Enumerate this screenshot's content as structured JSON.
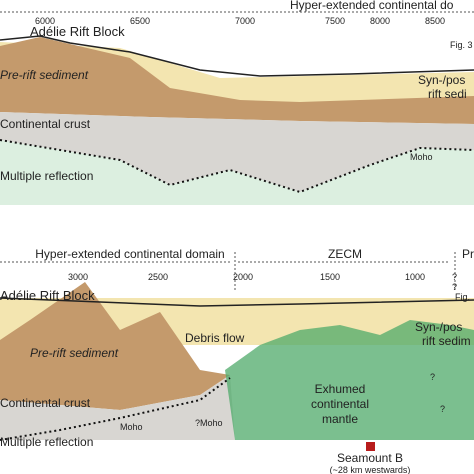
{
  "top": {
    "domain_label": "Hyper-extended continental do",
    "ticks": [
      "6000",
      "6500",
      "7000",
      "7500",
      "8000",
      "8500"
    ],
    "block": "Adélie Rift Block",
    "fig": "Fig. 3",
    "pre_rift": "Pre-rift sediment",
    "syn_1": "Syn-/pos",
    "syn_2": "rift sedi",
    "crust": "Continental crust",
    "moho": "Moho",
    "multiple": "Multiple reflection"
  },
  "bottom": {
    "domain_1": "Hyper-extended continental domain",
    "domain_2": "ZECM",
    "domain_3": "Pr",
    "ticks": [
      "3000",
      "2500",
      "2000",
      "1500",
      "1000"
    ],
    "q1": "?",
    "q2": "?",
    "block": "Adélie Rift Block",
    "fig": "Fig.",
    "debris": "Debris flow",
    "pre_rift": "Pre-rift sediment",
    "syn_1": "Syn-/pos",
    "syn_2": "rift sedim",
    "crust": "Continental crust",
    "moho": "Moho",
    "qmoho": "?Moho",
    "mantle": [
      "Exhumed",
      "continental",
      "mantle"
    ],
    "q3": "?",
    "q4": "?",
    "multiple": "Multiple reflection",
    "seamount": "Seamount B",
    "seamount_note": "(~28 km westwards)"
  }
}
